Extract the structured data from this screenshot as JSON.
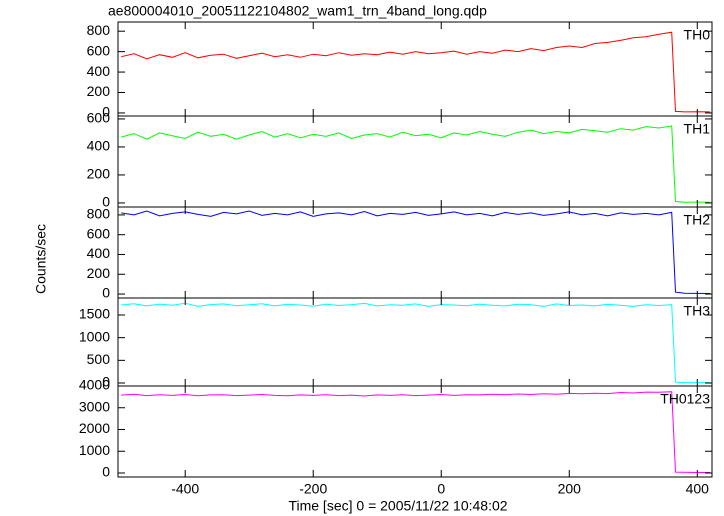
{
  "chart_data": [
    {
      "type": "line",
      "title": "ae800004010_20051122104802_wam1_trn_4band_long.qdp",
      "annotation": "TH0",
      "color": "#ff0000",
      "x": [
        -500,
        -480,
        -460,
        -440,
        -420,
        -400,
        -380,
        -360,
        -340,
        -320,
        -300,
        -280,
        -260,
        -240,
        -220,
        -200,
        -180,
        -160,
        -140,
        -120,
        -100,
        -80,
        -60,
        -40,
        -20,
        0,
        20,
        40,
        60,
        80,
        100,
        120,
        140,
        160,
        180,
        200,
        220,
        240,
        260,
        280,
        300,
        320,
        340,
        360,
        366,
        380,
        400,
        420
      ],
      "values": [
        550,
        580,
        530,
        570,
        545,
        590,
        540,
        565,
        575,
        535,
        560,
        585,
        550,
        570,
        545,
        575,
        560,
        590,
        565,
        580,
        570,
        595,
        575,
        600,
        580,
        590,
        605,
        575,
        600,
        585,
        615,
        600,
        630,
        610,
        640,
        655,
        640,
        680,
        690,
        710,
        735,
        745,
        770,
        790,
        15,
        10,
        12,
        10
      ],
      "xlim": [
        -505,
        423
      ],
      "xticks": [
        -400,
        -200,
        0,
        200,
        400
      ],
      "ylim": [
        -30,
        890
      ],
      "yticks": [
        0,
        200,
        400,
        600,
        800
      ]
    },
    {
      "type": "line",
      "annotation": "TH1",
      "color": "#00ff00",
      "x": [
        -500,
        -480,
        -460,
        -440,
        -420,
        -400,
        -380,
        -360,
        -340,
        -320,
        -300,
        -280,
        -260,
        -240,
        -220,
        -200,
        -180,
        -160,
        -140,
        -120,
        -100,
        -80,
        -60,
        -40,
        -20,
        0,
        20,
        40,
        60,
        80,
        100,
        120,
        140,
        160,
        180,
        200,
        220,
        240,
        260,
        280,
        300,
        320,
        340,
        360,
        366,
        380,
        400,
        420
      ],
      "values": [
        470,
        495,
        455,
        500,
        480,
        460,
        505,
        475,
        490,
        455,
        485,
        510,
        470,
        495,
        465,
        490,
        475,
        500,
        460,
        485,
        495,
        470,
        505,
        480,
        490,
        465,
        500,
        485,
        510,
        490,
        475,
        505,
        520,
        495,
        510,
        500,
        525,
        515,
        505,
        530,
        520,
        545,
        535,
        550,
        10,
        5,
        6,
        5
      ],
      "xlim": [
        -505,
        423
      ],
      "xticks": [
        -400,
        -200,
        0,
        200,
        400
      ],
      "ylim": [
        -29,
        621
      ],
      "yticks": [
        0,
        200,
        400,
        600
      ]
    },
    {
      "type": "line",
      "annotation": "TH2",
      "ylabel": "Counts/sec",
      "color": "#0000ff",
      "x": [
        -500,
        -480,
        -460,
        -440,
        -420,
        -400,
        -380,
        -360,
        -340,
        -320,
        -300,
        -280,
        -260,
        -240,
        -220,
        -200,
        -180,
        -160,
        -140,
        -120,
        -100,
        -80,
        -60,
        -40,
        -20,
        0,
        20,
        40,
        60,
        80,
        100,
        120,
        140,
        160,
        180,
        200,
        220,
        240,
        260,
        280,
        300,
        320,
        340,
        360,
        366,
        380,
        400,
        420
      ],
      "values": [
        820,
        800,
        840,
        790,
        815,
        830,
        805,
        785,
        825,
        810,
        840,
        795,
        815,
        800,
        830,
        785,
        810,
        820,
        800,
        835,
        790,
        815,
        805,
        825,
        795,
        810,
        830,
        800,
        815,
        790,
        825,
        805,
        820,
        795,
        810,
        830,
        800,
        815,
        790,
        820,
        805,
        815,
        800,
        825,
        20,
        8,
        6,
        5
      ],
      "xlim": [
        -505,
        423
      ],
      "xticks": [
        -400,
        -200,
        0,
        200,
        400
      ],
      "ylim": [
        -40,
        880
      ],
      "yticks": [
        0,
        200,
        400,
        600,
        800
      ]
    },
    {
      "type": "line",
      "annotation": "TH3",
      "color": "#00ffff",
      "x": [
        -500,
        -480,
        -460,
        -440,
        -420,
        -400,
        -380,
        -360,
        -340,
        -320,
        -300,
        -280,
        -260,
        -240,
        -220,
        -200,
        -180,
        -160,
        -140,
        -120,
        -100,
        -80,
        -60,
        -40,
        -20,
        0,
        20,
        40,
        60,
        80,
        100,
        120,
        140,
        160,
        180,
        200,
        220,
        240,
        260,
        280,
        300,
        320,
        340,
        360,
        366,
        380,
        400,
        420
      ],
      "values": [
        1720,
        1750,
        1700,
        1740,
        1715,
        1760,
        1690,
        1730,
        1745,
        1705,
        1725,
        1750,
        1700,
        1735,
        1720,
        1695,
        1740,
        1710,
        1730,
        1755,
        1700,
        1725,
        1715,
        1745,
        1690,
        1730,
        1720,
        1705,
        1740,
        1715,
        1700,
        1735,
        1725,
        1690,
        1745,
        1710,
        1720,
        1700,
        1735,
        1715,
        1690,
        1725,
        1710,
        1730,
        20,
        10,
        8,
        8
      ],
      "xlim": [
        -505,
        423
      ],
      "xticks": [
        -400,
        -200,
        0,
        200,
        400
      ],
      "ylim": [
        -66,
        1875
      ],
      "yticks": [
        0,
        500,
        1000,
        1500
      ]
    },
    {
      "type": "line",
      "annotation": "TH0123",
      "xlabel": "Time [sec] 0 = 2005/11/22 10:48:02",
      "color": "#ff00ff",
      "x": [
        -500,
        -480,
        -460,
        -440,
        -420,
        -400,
        -380,
        -360,
        -340,
        -320,
        -300,
        -280,
        -260,
        -240,
        -220,
        -200,
        -180,
        -160,
        -140,
        -120,
        -100,
        -80,
        -60,
        -40,
        -20,
        0,
        20,
        40,
        60,
        80,
        100,
        120,
        140,
        160,
        180,
        200,
        220,
        240,
        260,
        280,
        300,
        320,
        340,
        360,
        366,
        380,
        400,
        420
      ],
      "values": [
        3580,
        3620,
        3560,
        3600,
        3570,
        3610,
        3550,
        3590,
        3600,
        3560,
        3580,
        3610,
        3570,
        3550,
        3590,
        3570,
        3600,
        3560,
        3580,
        3540,
        3590,
        3570,
        3600,
        3560,
        3580,
        3610,
        3570,
        3600,
        3590,
        3620,
        3600,
        3630,
        3610,
        3640,
        3620,
        3660,
        3640,
        3670,
        3650,
        3700,
        3680,
        3720,
        3710,
        3740,
        40,
        30,
        25,
        25
      ],
      "xlim": [
        -505,
        423
      ],
      "xticks": [
        -400,
        -200,
        0,
        200,
        400
      ],
      "ylim": [
        -184,
        4000
      ],
      "yticks": [
        0,
        1000,
        2000,
        3000,
        4000
      ]
    }
  ]
}
